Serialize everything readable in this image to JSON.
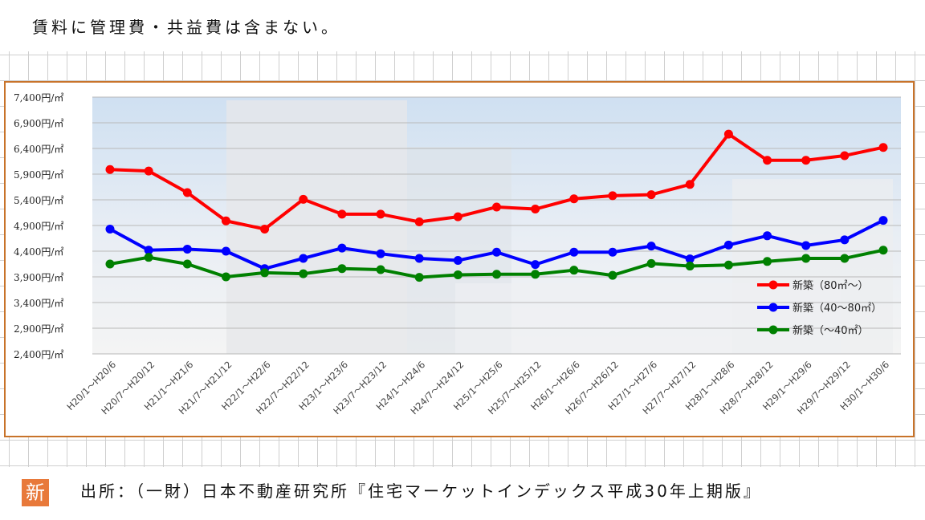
{
  "header": {
    "note": "賃料に管理費・共益費は含まない。"
  },
  "footer": {
    "source": "出所：（一財）日本不動産研究所『住宅マーケットインデックス平成30年上期版』"
  },
  "badge": {
    "label": "新"
  },
  "colors": {
    "frame": "#c8732a",
    "series": [
      "#ff0000",
      "#0000ff",
      "#008000"
    ],
    "badge": "#e8793a"
  },
  "chart_data": {
    "type": "line",
    "title": "",
    "xlabel": "",
    "ylabel": "",
    "ylim": [
      2400,
      7400
    ],
    "y_ticks": [
      "7,400円/㎡",
      "6,900円/㎡",
      "6,400円/㎡",
      "5,900円/㎡",
      "5,400円/㎡",
      "4,900円/㎡",
      "4,400円/㎡",
      "3,900円/㎡",
      "3,400円/㎡",
      "2,900円/㎡",
      "2,400円/㎡"
    ],
    "y_tick_values": [
      7400,
      6900,
      6400,
      5900,
      5400,
      4900,
      4400,
      3900,
      3400,
      2900,
      2400
    ],
    "categories": [
      "H20/1～H20/6",
      "H20/7～H20/12",
      "H21/1～H21/6",
      "H21/7～H21/12",
      "H22/1～H22/6",
      "H22/7～H22/12",
      "H23/1～H23/6",
      "H23/7～H23/12",
      "H24/1～H24/6",
      "H24/7～H24/12",
      "H25/1～H25/6",
      "H25/7～H25/12",
      "H26/1～H26/6",
      "H26/7～H26/12",
      "H27/1～H27/6",
      "H27/7～H27/12",
      "H28/1～H28/6",
      "H28/7～H28/12",
      "H29/1～H29/6",
      "H29/7～H29/12",
      "H30/1～H30/6"
    ],
    "series": [
      {
        "name": "新築（80㎡～）",
        "values": [
          5990,
          5960,
          5540,
          4990,
          4830,
          5410,
          5120,
          5120,
          4970,
          5070,
          5260,
          5220,
          5420,
          5480,
          5500,
          5700,
          6680,
          6170,
          6170,
          6260,
          6420
        ]
      },
      {
        "name": "新築（40～80㎡）",
        "values": [
          4830,
          4420,
          4440,
          4400,
          4060,
          4260,
          4460,
          4350,
          4260,
          4220,
          4380,
          4140,
          4380,
          4380,
          4500,
          4250,
          4520,
          4700,
          4510,
          4620,
          5000
        ]
      },
      {
        "name": "新築（～40㎡）",
        "values": [
          4150,
          4280,
          4150,
          3900,
          3980,
          3960,
          4060,
          4040,
          3890,
          3940,
          3950,
          3950,
          4030,
          3930,
          4160,
          4110,
          4130,
          4200,
          4260,
          4260,
          4420
        ]
      }
    ],
    "legend_position": "bottom-right",
    "grid": true
  }
}
